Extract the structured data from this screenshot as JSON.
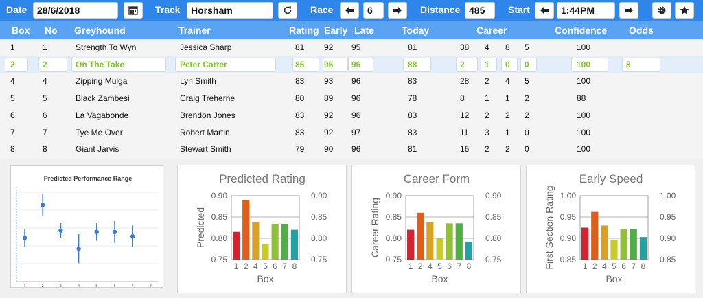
{
  "toolbar": {
    "date_label": "Date",
    "date_value": "28/6/2018",
    "track_label": "Track",
    "track_value": "Horsham",
    "race_label": "Race",
    "race_value": "6",
    "distance_label": "Distance",
    "distance_value": "485",
    "start_label": "Start",
    "start_value": "1:44PM",
    "icons": [
      "calendar-icon",
      "refresh-icon",
      "arrow-left-icon",
      "arrow-right-icon",
      "gear-icon",
      "star-icon"
    ]
  },
  "columns": {
    "box": "Box",
    "no": "No",
    "greyhound": "Greyhound",
    "trainer": "Trainer",
    "rating": "Rating",
    "early": "Early",
    "late": "Late",
    "today": "Today",
    "career": "Career",
    "confidence": "Confidence",
    "odds": "Odds"
  },
  "rows": [
    {
      "box": "1",
      "no": "1",
      "name": "Strength To Wyn",
      "trainer": "Jessica Sharp",
      "rating": "81",
      "early": "92",
      "late": "95",
      "today": "81",
      "c1": "38",
      "c2": "4",
      "c3": "8",
      "c4": "5",
      "conf": "100",
      "odds": ""
    },
    {
      "box": "2",
      "no": "2",
      "name": "On The Take",
      "trainer": "Peter Carter",
      "rating": "85",
      "early": "96",
      "late": "96",
      "today": "88",
      "c1": "2",
      "c2": "1",
      "c3": "0",
      "c4": "0",
      "conf": "100",
      "odds": "8"
    },
    {
      "box": "4",
      "no": "4",
      "name": "Zipping Mulga",
      "trainer": "Lyn Smith",
      "rating": "83",
      "early": "93",
      "late": "96",
      "today": "83",
      "c1": "28",
      "c2": "2",
      "c3": "4",
      "c4": "5",
      "conf": "100",
      "odds": ""
    },
    {
      "box": "5",
      "no": "5",
      "name": "Black Zambesi",
      "trainer": "Craig Treherne",
      "rating": "80",
      "early": "89",
      "late": "96",
      "today": "78",
      "c1": "8",
      "c2": "1",
      "c3": "1",
      "c4": "2",
      "conf": "88",
      "odds": ""
    },
    {
      "box": "6",
      "no": "6",
      "name": "La Vagabonde",
      "trainer": "Brendon Jones",
      "rating": "83",
      "early": "92",
      "late": "96",
      "today": "83",
      "c1": "12",
      "c2": "2",
      "c3": "2",
      "c4": "2",
      "conf": "100",
      "odds": ""
    },
    {
      "box": "7",
      "no": "7",
      "name": "Tye Me Over",
      "trainer": "Robert Martin",
      "rating": "83",
      "early": "92",
      "late": "97",
      "today": "83",
      "c1": "11",
      "c2": "3",
      "c3": "1",
      "c4": "0",
      "conf": "100",
      "odds": ""
    },
    {
      "box": "8",
      "no": "8",
      "name": "Giant Jarvis",
      "trainer": "Stewart Smith",
      "rating": "79",
      "early": "90",
      "late": "96",
      "today": "81",
      "c1": "16",
      "c2": "2",
      "c3": "2",
      "c4": "0",
      "conf": "100",
      "odds": ""
    }
  ],
  "selected_row": 1,
  "colors": {
    "bar": "#2f86ea",
    "header": "#5aa2f2",
    "selected_text": "#85c231",
    "selected_row": "#e3eefb"
  },
  "chart_data": [
    {
      "type": "scatter",
      "title": "Predicted Performance Range",
      "x": [
        1,
        2,
        3,
        4,
        5,
        6,
        7,
        8
      ],
      "y": [
        0.82,
        0.865,
        0.83,
        0.805,
        0.828,
        0.828,
        0.822,
        null
      ],
      "error": [
        0.012,
        0.015,
        0.01,
        0.02,
        0.012,
        0.015,
        0.015,
        null
      ]
    },
    {
      "type": "bar",
      "title": "Predicted Rating",
      "xlabel": "Box",
      "ylabel": "Predicted",
      "categories": [
        "1",
        "2",
        "4",
        "5",
        "6",
        "7",
        "8"
      ],
      "values": [
        0.815,
        0.89,
        0.838,
        0.787,
        0.834,
        0.834,
        0.82
      ],
      "ylim": [
        0.75,
        0.9
      ],
      "yticks": [
        "0.75",
        "0.80",
        "0.85",
        "0.90"
      ],
      "bar_colors": [
        "#d8202e",
        "#e05d1c",
        "#d9a227",
        "#c7cc2c",
        "#93c03a",
        "#4fae44",
        "#24a1a3"
      ]
    },
    {
      "type": "bar",
      "title": "Career Form",
      "xlabel": "Box",
      "ylabel": "Career Rating",
      "categories": [
        "1",
        "2",
        "4",
        "5",
        "6",
        "7",
        "8"
      ],
      "values": [
        0.82,
        0.86,
        0.838,
        0.8,
        0.835,
        0.835,
        0.792
      ],
      "ylim": [
        0.75,
        0.9
      ],
      "yticks": [
        "0.75",
        "0.80",
        "0.85",
        "0.90"
      ],
      "bar_colors": [
        "#d8202e",
        "#e05d1c",
        "#d9a227",
        "#c7cc2c",
        "#93c03a",
        "#4fae44",
        "#24a1a3"
      ]
    },
    {
      "type": "bar",
      "title": "Early Speed",
      "xlabel": "Box",
      "ylabel": "First Section Rating",
      "categories": [
        "1",
        "2",
        "4",
        "5",
        "6",
        "7",
        "8"
      ],
      "values": [
        0.925,
        0.962,
        0.93,
        0.897,
        0.922,
        0.922,
        0.903
      ],
      "ylim": [
        0.85,
        1.0
      ],
      "yticks": [
        "0.85",
        "0.90",
        "0.95",
        "1.00"
      ],
      "bar_colors": [
        "#d8202e",
        "#e05d1c",
        "#d9a227",
        "#c7cc2c",
        "#93c03a",
        "#4fae44",
        "#24a1a3"
      ]
    }
  ]
}
